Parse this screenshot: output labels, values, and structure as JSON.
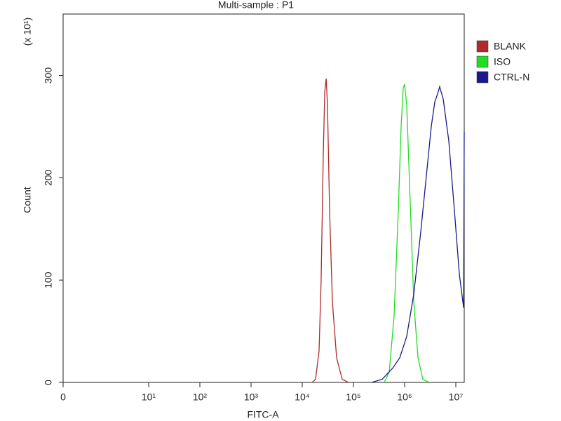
{
  "chart_data": {
    "type": "line",
    "title": "Multi-sample : P1",
    "x_label": "FITC-A",
    "y_label": "Count",
    "y_annotation": "(x 10¹)",
    "xscale": "symlog",
    "legend": "right",
    "xlim": [
      0,
      14600000
    ],
    "ylim": [
      0,
      360
    ],
    "xticks": [
      0,
      {
        "value": 10,
        "label": "10¹"
      },
      {
        "value": 100,
        "label": "10²"
      },
      {
        "value": 1000,
        "label": "10³"
      },
      {
        "value": 10000,
        "label": "10⁴"
      },
      {
        "value": 100000,
        "label": "10⁵"
      },
      {
        "value": 1000000,
        "label": "10⁶"
      },
      {
        "value": 10000000,
        "label": "10⁷"
      }
    ],
    "yticks": [
      0,
      100,
      200,
      300
    ],
    "series": [
      {
        "name": "BLANK",
        "color": "#b02a2a",
        "x": [
          15600,
          18200,
          21300,
          23400,
          25800,
          27500,
          29300,
          31100,
          34200,
          38800,
          46900,
          60400,
          80200
        ],
        "values": [
          0,
          3,
          31,
          99,
          223,
          284,
          297,
          271,
          168,
          79,
          24,
          3,
          0
        ]
      },
      {
        "name": "ISO",
        "color": "#22dd22",
        "x": [
          401000,
          500000,
          624000,
          753000,
          855000,
          940000,
          1000000,
          1099000,
          1247000,
          1507000,
          1824000,
          2270000,
          3020000
        ],
        "values": [
          0,
          10,
          65,
          168,
          250,
          288,
          291,
          271,
          195,
          79,
          24,
          3,
          0
        ]
      },
      {
        "name": "CTRL-N",
        "color": "#1a1a8c",
        "x": [
          227000,
          365000,
          585000,
          802000,
          1099000,
          1507000,
          2066000,
          2661000,
          3319000,
          3882000,
          4550000,
          4842000,
          5675000,
          7295000,
          9397000,
          11720000,
          14200000,
          14600000
        ],
        "values": [
          0,
          3,
          14,
          24,
          45,
          86,
          147,
          202,
          250,
          274,
          284,
          289,
          277,
          236,
          168,
          106,
          73,
          245
        ]
      }
    ]
  }
}
